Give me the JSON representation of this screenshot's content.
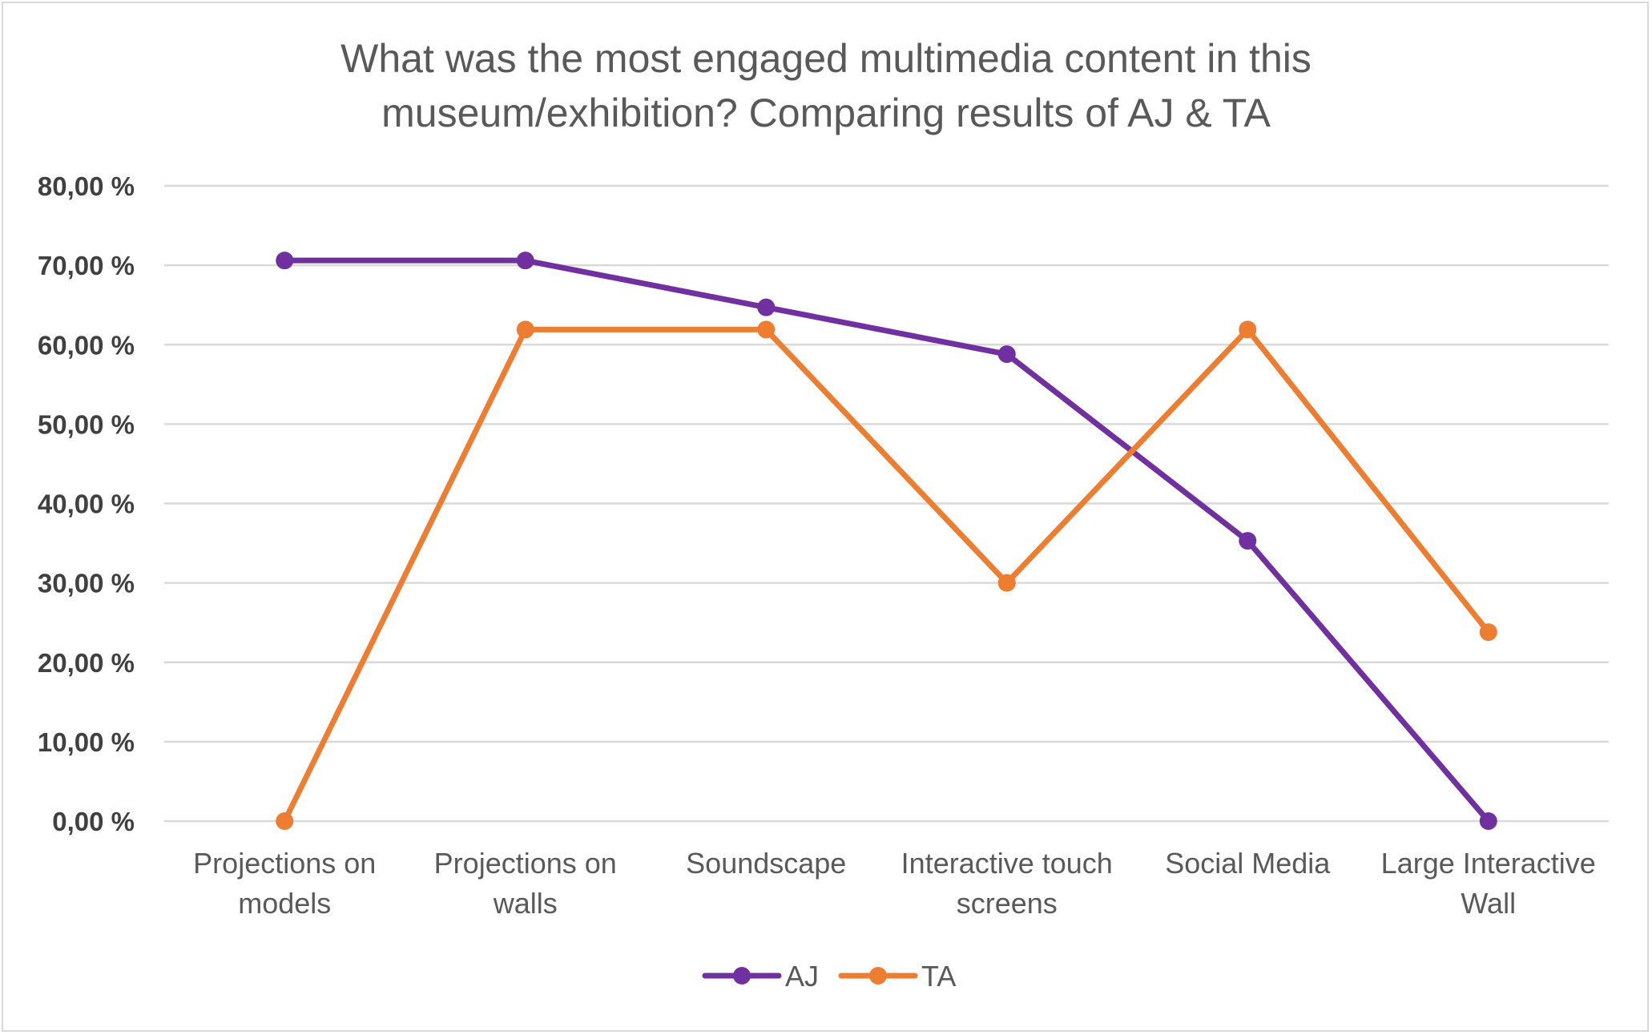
{
  "chart_data": {
    "type": "line",
    "title": "What was the most engaged multimedia content in this museum/exhibition? Comparing results  of AJ & TA",
    "title_lines": [
      "What was the most engaged multimedia content in this",
      "museum/exhibition? Comparing results  of AJ & TA"
    ],
    "categories": [
      [
        "Projections on",
        "models"
      ],
      [
        "Projections on",
        "walls"
      ],
      [
        "Soundscape"
      ],
      [
        "Interactive touch",
        "screens"
      ],
      [
        "Social Media"
      ],
      [
        "Large Interactive",
        "Wall"
      ]
    ],
    "series": [
      {
        "name": "AJ",
        "color": "#7030a0",
        "values": [
          70.6,
          70.6,
          64.7,
          58.8,
          35.3,
          0.0
        ]
      },
      {
        "name": "TA",
        "color": "#ed7d31",
        "values": [
          0.0,
          61.9,
          61.9,
          30.0,
          61.9,
          23.8
        ]
      }
    ],
    "yticks": [
      "0,00 %",
      "10,00 %",
      "20,00 %",
      "30,00 %",
      "40,00 %",
      "50,00 %",
      "60,00 %",
      "70,00 %",
      "80,00 %"
    ],
    "ylim": [
      0,
      80
    ],
    "ylabel": "",
    "xlabel": "",
    "grid": true,
    "legend_position": "bottom"
  }
}
